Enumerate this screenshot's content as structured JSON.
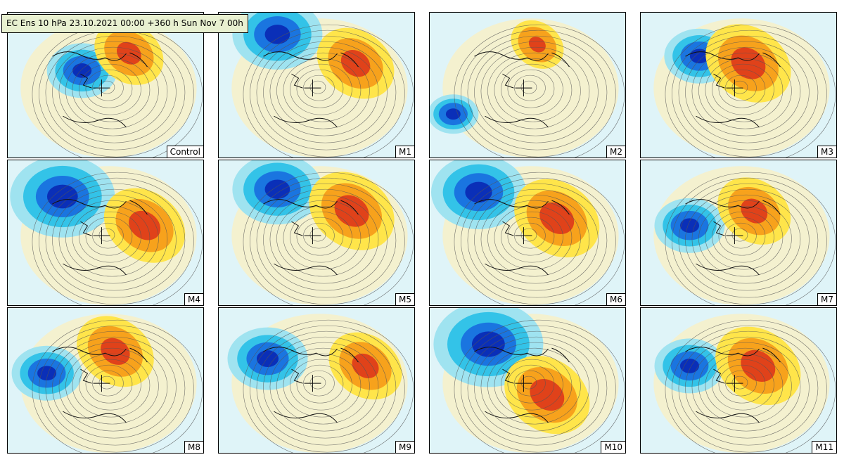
{
  "title": "EC Ens 10 hPa 23.10.2021 00:00 +360 h Sun Nov 7 00h",
  "panels": [
    {
      "label": "Control",
      "cold": [
        0.38,
        0.4,
        0.6
      ],
      "warm": [
        0.62,
        0.28,
        0.75
      ]
    },
    {
      "label": "M1",
      "cold": [
        0.3,
        0.15,
        0.8
      ],
      "warm": [
        0.7,
        0.35,
        0.85
      ]
    },
    {
      "label": "M2",
      "cold": [
        0.12,
        0.7,
        0.4
      ],
      "warm": [
        0.55,
        0.22,
        0.55
      ]
    },
    {
      "label": "M3",
      "cold": [
        0.3,
        0.3,
        0.6
      ],
      "warm": [
        0.55,
        0.35,
        0.95
      ]
    },
    {
      "label": "M4",
      "cold": [
        0.28,
        0.25,
        0.95
      ],
      "warm": [
        0.7,
        0.45,
        0.9
      ]
    },
    {
      "label": "M5",
      "cold": [
        0.3,
        0.2,
        0.8
      ],
      "warm": [
        0.68,
        0.35,
        0.95
      ]
    },
    {
      "label": "M6",
      "cold": [
        0.25,
        0.22,
        0.85
      ],
      "warm": [
        0.65,
        0.4,
        0.95
      ]
    },
    {
      "label": "M7",
      "cold": [
        0.25,
        0.45,
        0.6
      ],
      "warm": [
        0.58,
        0.35,
        0.8
      ]
    },
    {
      "label": "M8",
      "cold": [
        0.2,
        0.45,
        0.6
      ],
      "warm": [
        0.55,
        0.3,
        0.85
      ]
    },
    {
      "label": "M9",
      "cold": [
        0.25,
        0.35,
        0.7
      ],
      "warm": [
        0.75,
        0.4,
        0.8
      ]
    },
    {
      "label": "M10",
      "cold": [
        0.3,
        0.25,
        1.0
      ],
      "warm": [
        0.6,
        0.6,
        0.95
      ]
    },
    {
      "label": "M11",
      "cold": [
        0.25,
        0.4,
        0.6
      ],
      "warm": [
        0.6,
        0.4,
        0.95
      ]
    }
  ],
  "colors": {
    "background": "#dff4f8",
    "cold_1": "#9fe3f0",
    "cold_2": "#33c3e8",
    "cold_3": "#1a75e0",
    "cold_4": "#0a2fb8",
    "warm_1": "#f8f0c8",
    "warm_2": "#ffe54a",
    "warm_3": "#f7a21c",
    "warm_4": "#e0421a"
  }
}
